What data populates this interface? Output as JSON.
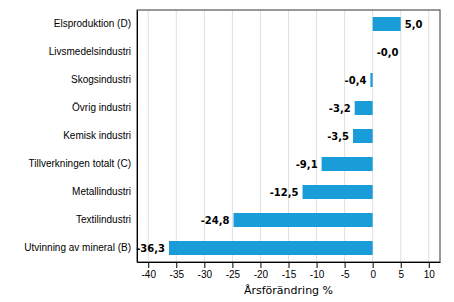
{
  "chart_data": {
    "type": "bar",
    "orientation": "horizontal",
    "categories": [
      "Utvinning av mineral (B)",
      "Textilindustri",
      "Metallindustri",
      "Tillverkningen totalt (C)",
      "Kemisk industri",
      "Övrig industri",
      "Skogsindustri",
      "Livsmedelsindustri",
      "Elsproduktion (D)"
    ],
    "values": [
      -36.3,
      -24.8,
      -12.5,
      -9.1,
      -3.5,
      -3.2,
      -0.4,
      -0.0,
      5.0
    ],
    "value_labels": [
      "-36,3",
      "-24,8",
      "-12,5",
      "-9,1",
      "-3,5",
      "-3,2",
      "-0,4",
      "-0,0",
      "5,0"
    ],
    "data_labels": true,
    "color": "#1a9cd8",
    "xlabel": "Årsförändring %",
    "xlim": [
      -42,
      12
    ],
    "xticks": [
      -40,
      -35,
      -30,
      -25,
      -20,
      -15,
      -10,
      -5,
      0,
      5,
      10
    ],
    "grid": true
  }
}
